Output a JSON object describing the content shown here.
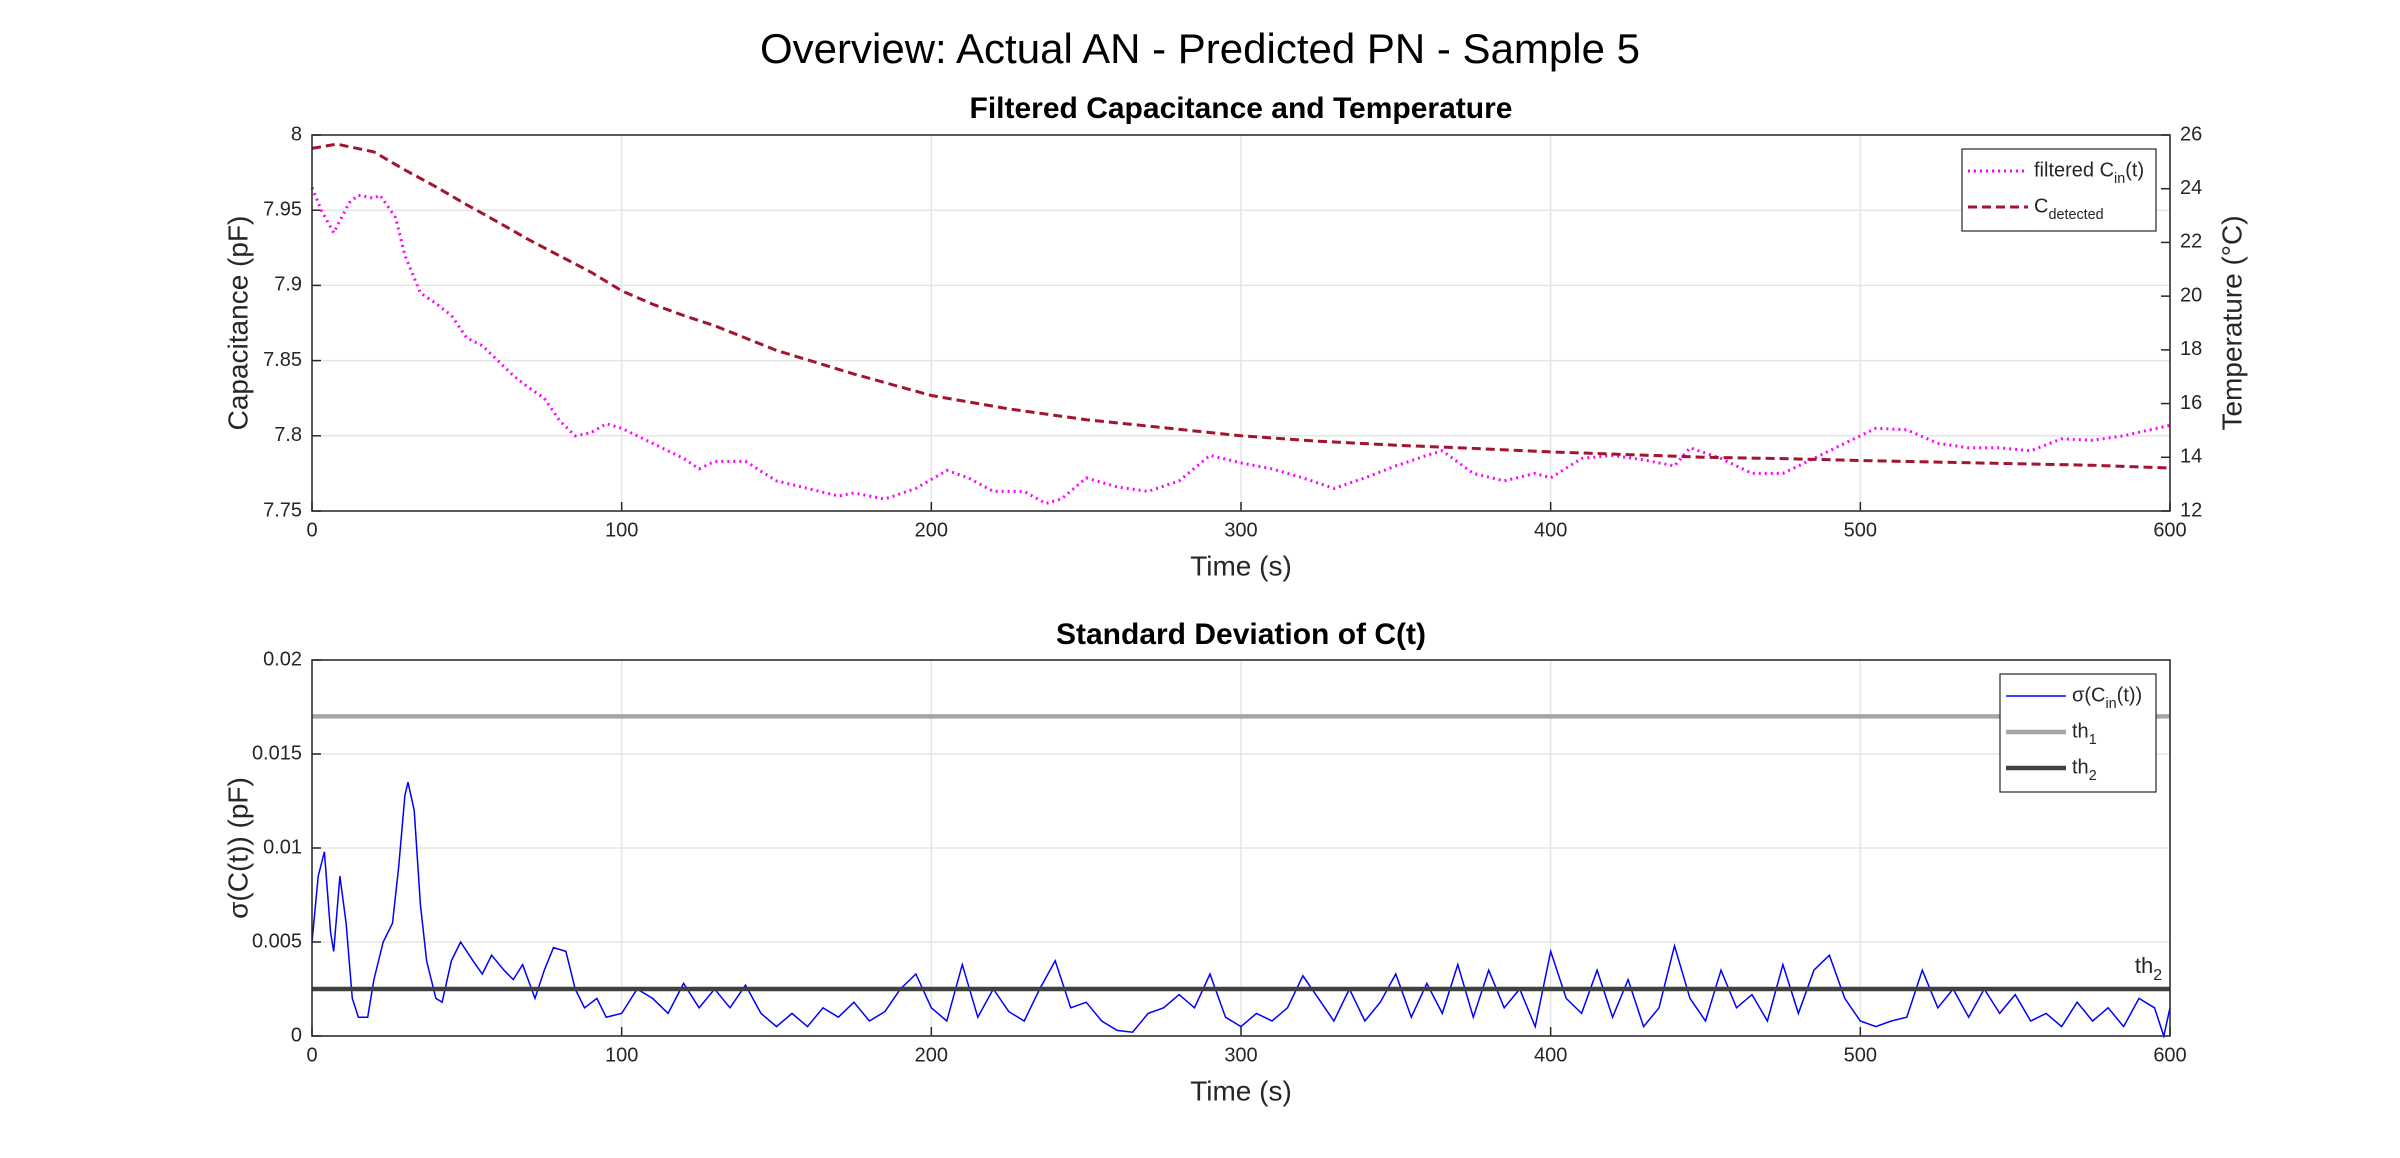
{
  "title": "Overview: Actual AN - Predicted PN - Sample 5",
  "chart_data": [
    {
      "type": "line",
      "title": "Filtered Capacitance and Temperature",
      "xlabel": "Time (s)",
      "ylabel": "Capacitance (pF)",
      "y2label": "Temperature (°C)",
      "xlim": [
        0,
        600
      ],
      "xticks": [
        0,
        100,
        200,
        300,
        400,
        500,
        600
      ],
      "ylim": [
        7.75,
        8
      ],
      "yticks": [
        7.75,
        7.8,
        7.85,
        7.9,
        7.95,
        8
      ],
      "y2lim": [
        12,
        26
      ],
      "y2ticks": [
        12,
        14,
        16,
        18,
        20,
        22,
        24,
        26
      ],
      "grid": true,
      "legend": "northeast",
      "series": [
        {
          "name": "filtered C_{in}(t)",
          "color": "#ff00ff",
          "linestyle": "dotted",
          "linewidth": 3,
          "x": [
            0,
            3,
            7,
            12,
            15,
            20,
            22,
            27,
            30,
            35,
            40,
            45,
            50,
            55,
            60,
            65,
            70,
            75,
            80,
            85,
            90,
            95,
            100,
            110,
            120,
            125,
            130,
            140,
            150,
            160,
            170,
            175,
            185,
            195,
            205,
            212,
            220,
            230,
            237,
            242,
            250,
            260,
            270,
            280,
            290,
            300,
            310,
            320,
            330,
            340,
            350,
            360,
            365,
            375,
            385,
            395,
            400,
            410,
            420,
            430,
            440,
            445,
            455,
            465,
            475,
            485,
            495,
            505,
            515,
            525,
            535,
            545,
            555,
            565,
            575,
            585,
            600
          ],
          "values": [
            7.965,
            7.95,
            7.935,
            7.955,
            7.96,
            7.958,
            7.96,
            7.945,
            7.92,
            7.895,
            7.888,
            7.88,
            7.865,
            7.86,
            7.85,
            7.84,
            7.832,
            7.825,
            7.81,
            7.8,
            7.802,
            7.808,
            7.805,
            7.795,
            7.785,
            7.778,
            7.783,
            7.783,
            7.77,
            7.765,
            7.76,
            7.762,
            7.758,
            7.765,
            7.777,
            7.772,
            7.763,
            7.763,
            7.755,
            7.758,
            7.772,
            7.766,
            7.763,
            7.77,
            7.787,
            7.782,
            7.778,
            7.772,
            7.765,
            7.772,
            7.78,
            7.787,
            7.79,
            7.775,
            7.77,
            7.775,
            7.772,
            7.785,
            7.787,
            7.784,
            7.78,
            7.792,
            7.785,
            7.775,
            7.775,
            7.785,
            7.795,
            7.805,
            7.804,
            7.795,
            7.792,
            7.792,
            7.79,
            7.798,
            7.797,
            7.8,
            7.807
          ]
        },
        {
          "name": "C_{detected}",
          "color": "#a2142f",
          "linestyle": "dashed",
          "linewidth": 3,
          "axis": "y2",
          "x": [
            0,
            8,
            20,
            30,
            40,
            50,
            60,
            70,
            80,
            90,
            100,
            110,
            120,
            130,
            150,
            175,
            200,
            225,
            250,
            275,
            300,
            325,
            350,
            375,
            400,
            425,
            450,
            475,
            500,
            525,
            550,
            575,
            600
          ],
          "values": [
            25.5,
            25.66,
            25.37,
            24.7,
            24.07,
            23.4,
            22.76,
            22.1,
            21.5,
            20.9,
            20.2,
            19.7,
            19.28,
            18.9,
            17.98,
            17.1,
            16.3,
            15.8,
            15.4,
            15.1,
            14.8,
            14.6,
            14.45,
            14.33,
            14.2,
            14.1,
            14.0,
            13.95,
            13.88,
            13.82,
            13.76,
            13.7,
            13.6
          ]
        }
      ]
    },
    {
      "type": "line",
      "title": "Standard Deviation of C(t)",
      "xlabel": "Time (s)",
      "ylabel": "σ(C(t)) (pF)",
      "xlim": [
        0,
        600
      ],
      "xticks": [
        0,
        100,
        200,
        300,
        400,
        500,
        600
      ],
      "ylim": [
        0,
        0.02
      ],
      "yticks": [
        0,
        0.005,
        0.01,
        0.015,
        0.02
      ],
      "grid": true,
      "legend": "northeast",
      "annotation": "th_{2}",
      "series": [
        {
          "name": "σ(C_{in}(t))",
          "color": "#0000ff",
          "linestyle": "solid",
          "linewidth": 1.5,
          "x": [
            0,
            2,
            4,
            6,
            7,
            9,
            11,
            13,
            15,
            18,
            20,
            23,
            26,
            28,
            30,
            31,
            33,
            35,
            37,
            40,
            42,
            45,
            48,
            52,
            55,
            58,
            62,
            65,
            68,
            72,
            75,
            78,
            82,
            85,
            88,
            92,
            95,
            100,
            105,
            110,
            115,
            120,
            125,
            130,
            135,
            140,
            145,
            150,
            155,
            160,
            165,
            170,
            175,
            180,
            185,
            190,
            195,
            200,
            205,
            210,
            215,
            220,
            225,
            230,
            235,
            240,
            245,
            250,
            255,
            260,
            265,
            270,
            275,
            280,
            285,
            290,
            295,
            300,
            305,
            310,
            315,
            320,
            325,
            330,
            335,
            340,
            345,
            350,
            355,
            360,
            365,
            370,
            375,
            380,
            385,
            390,
            395,
            400,
            405,
            410,
            415,
            420,
            425,
            430,
            435,
            440,
            445,
            450,
            455,
            460,
            465,
            470,
            475,
            480,
            485,
            490,
            495,
            500,
            505,
            510,
            515,
            520,
            525,
            530,
            535,
            540,
            545,
            550,
            555,
            560,
            565,
            570,
            575,
            580,
            585,
            590,
            595,
            598,
            600
          ],
          "values": [
            0.005,
            0.0085,
            0.0098,
            0.0055,
            0.0045,
            0.0085,
            0.006,
            0.002,
            0.001,
            0.001,
            0.003,
            0.005,
            0.006,
            0.009,
            0.0128,
            0.0135,
            0.012,
            0.007,
            0.004,
            0.002,
            0.0018,
            0.004,
            0.005,
            0.004,
            0.0033,
            0.0043,
            0.0035,
            0.003,
            0.0038,
            0.002,
            0.0035,
            0.0047,
            0.0045,
            0.0025,
            0.0015,
            0.002,
            0.001,
            0.0012,
            0.0025,
            0.002,
            0.0012,
            0.0028,
            0.0015,
            0.0025,
            0.0015,
            0.0027,
            0.0012,
            0.0005,
            0.0012,
            0.0005,
            0.0015,
            0.001,
            0.0018,
            0.0008,
            0.0013,
            0.0025,
            0.0033,
            0.0015,
            0.0008,
            0.0038,
            0.001,
            0.0025,
            0.0013,
            0.0008,
            0.0025,
            0.004,
            0.0015,
            0.0018,
            0.0008,
            0.0003,
            0.0002,
            0.0012,
            0.0015,
            0.0022,
            0.0015,
            0.0033,
            0.001,
            0.0005,
            0.0012,
            0.0008,
            0.0015,
            0.0032,
            0.002,
            0.0008,
            0.0025,
            0.0008,
            0.0018,
            0.0033,
            0.001,
            0.0028,
            0.0012,
            0.0038,
            0.001,
            0.0035,
            0.0015,
            0.0025,
            0.0005,
            0.0045,
            0.002,
            0.0012,
            0.0035,
            0.001,
            0.003,
            0.0005,
            0.0015,
            0.0048,
            0.002,
            0.0008,
            0.0035,
            0.0015,
            0.0022,
            0.0008,
            0.0038,
            0.0012,
            0.0035,
            0.0043,
            0.002,
            0.0008,
            0.0005,
            0.0008,
            0.001,
            0.0035,
            0.0015,
            0.0025,
            0.001,
            0.0025,
            0.0012,
            0.0022,
            0.0008,
            0.0012,
            0.0005,
            0.0018,
            0.0008,
            0.0015,
            0.0005,
            0.002,
            0.0015,
            0,
            0.0015
          ]
        },
        {
          "name": "th_{1}",
          "color": "#a6a6a6",
          "linestyle": "solid",
          "linewidth": 4.5,
          "x": [
            0,
            600
          ],
          "values": [
            0.017,
            0.017
          ]
        },
        {
          "name": "th_{2}",
          "color": "#404040",
          "linestyle": "solid",
          "linewidth": 4.5,
          "x": [
            0,
            600
          ],
          "values": [
            0.0025,
            0.0025
          ]
        }
      ]
    }
  ]
}
